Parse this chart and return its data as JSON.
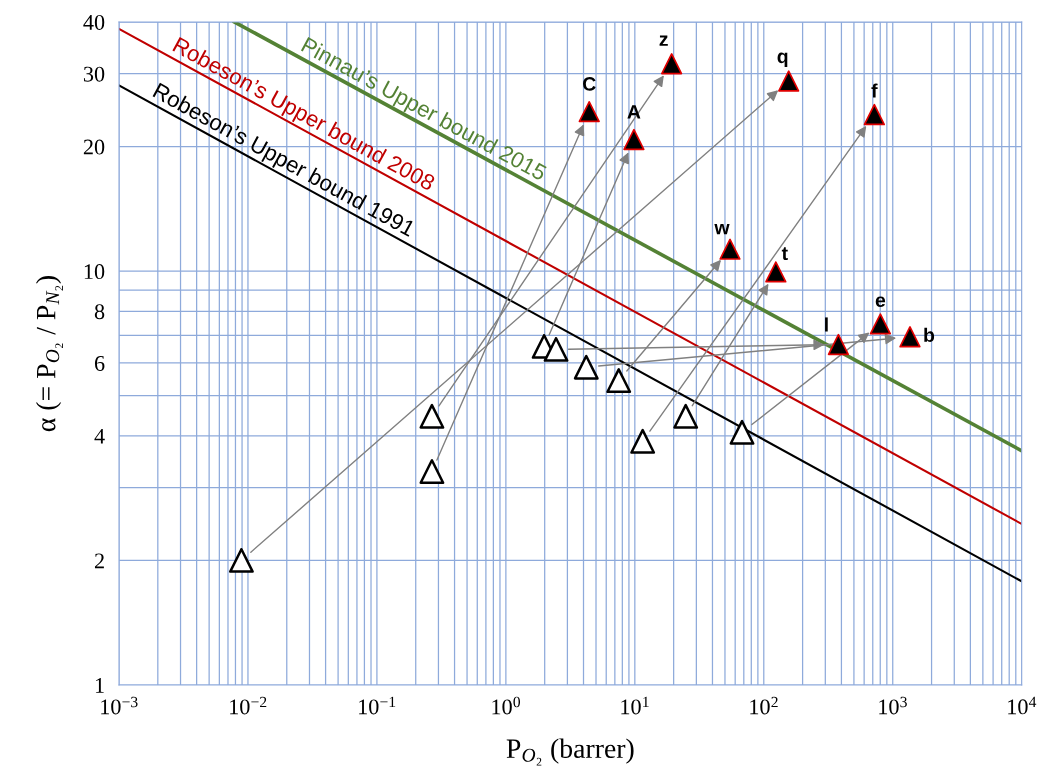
{
  "chart_data": {
    "type": "scatter",
    "xlabel": "P$_{O₂}$ (barrer)",
    "ylabel": "α (= P$_{O₂}$ / P$_{N₂}$)",
    "log": "xy",
    "grid": true,
    "legend": false,
    "xlim": [
      0.001,
      10000
    ],
    "xticks": [
      {
        "value": 0.001,
        "label": "10$^{−3}$"
      },
      {
        "value": 0.01,
        "label": "10$^{−2}$"
      },
      {
        "value": 0.1,
        "label": "10$^{−1}$"
      },
      {
        "value": 1,
        "label": "10$^{0}$"
      },
      {
        "value": 10,
        "label": "10$^{1}$"
      },
      {
        "value": 100,
        "label": "10$^{2}$"
      },
      {
        "value": 1000,
        "label": "10$^{3}$"
      },
      {
        "value": 10000,
        "label": "10$^{4}$"
      }
    ],
    "ylim": [
      1,
      40
    ],
    "yticks": [
      1,
      2,
      4,
      6,
      8,
      10,
      20,
      30,
      40
    ],
    "series": [
      {
        "type": "line",
        "name": "Robeson’s Upper bound 1991",
        "color": "#000000",
        "line_style": "solid",
        "marker": "none",
        "x": [
          0.001,
          10000
        ],
        "values": [
          28.1,
          1.78
        ]
      },
      {
        "type": "line",
        "name": "Robeson’s Upper bound 2008",
        "color": "#c00000",
        "line_style": "solid",
        "marker": "none",
        "x": [
          0.001,
          10000
        ],
        "values": [
          38.5,
          2.45
        ]
      },
      {
        "type": "line",
        "name": "Pinnau’s Upper bound 2015",
        "color": "#548235",
        "line_style": "solid",
        "marker": "none",
        "x": [
          0.00785,
          10000
        ],
        "values": [
          40,
          3.68
        ]
      },
      {
        "marker": "triangle",
        "color": "#000000",
        "x": [
          0.267,
          1.98,
          0.267,
          0.0089,
          11.5,
          7.5,
          24.8,
          2.45,
          67.8,
          4.2
        ],
        "values": [
          3.28,
          6.58,
          4.46,
          2.0,
          3.88,
          5.44,
          4.46,
          6.47,
          4.08,
          5.86
        ]
      },
      {
        "marker": "triangle",
        "color": "#000000",
        "x": [
          4.43,
          9.84,
          19.3,
          156,
          720,
          54.7,
          124,
          379,
          802,
          1360
        ],
        "values": [
          24.3,
          20.8,
          31.7,
          28.8,
          23.9,
          11.3,
          9.96,
          6.65,
          7.46,
          6.94
        ],
        "value_labels": [
          "C",
          "A",
          "z",
          "q",
          "f",
          "w",
          "t",
          "l",
          "e",
          "b"
        ]
      }
    ]
  }
}
